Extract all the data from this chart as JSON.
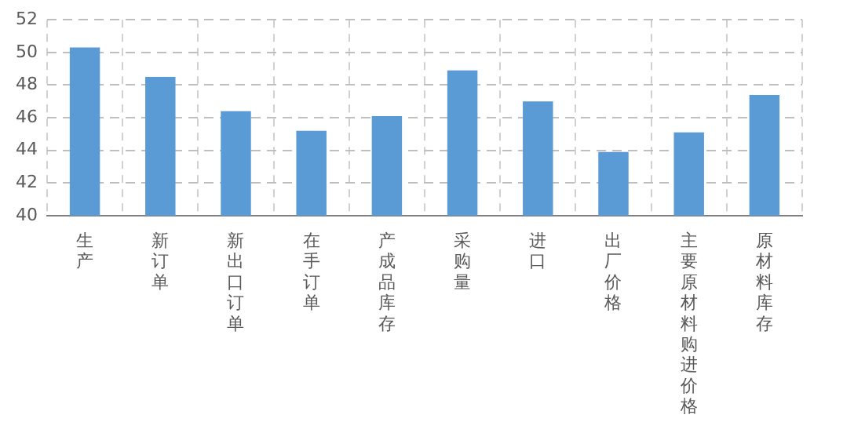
{
  "chart_data": {
    "type": "bar",
    "categories": [
      "生产",
      "新订单",
      "新出口订单",
      "在手订单",
      "产成品库存",
      "采购量",
      "进口",
      "出厂价格",
      "主要原材料购进价格",
      "原材料库存"
    ],
    "values": [
      50.3,
      48.5,
      46.4,
      45.2,
      46.1,
      48.9,
      47.0,
      43.9,
      45.1,
      47.4
    ],
    "color": "#5b9bd5",
    "ylim": [
      40,
      52
    ],
    "yticks": [
      40,
      42,
      44,
      46,
      48,
      50,
      52
    ],
    "grid": true,
    "legend": false
  }
}
